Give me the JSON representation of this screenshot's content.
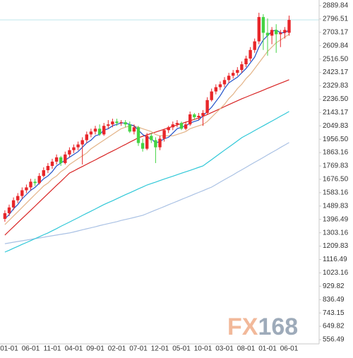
{
  "chart_data": {
    "type": "candlestick",
    "categories": [
      null,
      "01-01",
      null,
      null,
      null,
      null,
      "06-01",
      null,
      null,
      null,
      null,
      "11-01",
      null,
      null,
      null,
      null,
      "04-01",
      null,
      null,
      null,
      null,
      "09-01",
      null,
      null,
      null,
      null,
      "02-01",
      null,
      null,
      null,
      null,
      "07-01",
      null,
      null,
      null,
      null,
      "12-01",
      null,
      null,
      null,
      null,
      "05-01",
      null,
      null,
      null,
      null,
      "10-01",
      null,
      null,
      null,
      null,
      "03-01",
      null,
      null,
      null,
      null,
      "08-01",
      null,
      null,
      null,
      null,
      "01-01",
      null,
      null,
      null,
      null,
      "06-01"
    ],
    "open": [
      1400,
      1440,
      1480,
      1530,
      1560,
      1600,
      1620,
      1660,
      1650,
      1700,
      1740,
      1770,
      1800,
      1830,
      1790,
      1850,
      1880,
      1900,
      1920,
      1950,
      1990,
      2010,
      2030,
      1990,
      2050,
      2060,
      2080,
      2070,
      2075,
      2060,
      2010,
      2040,
      1930,
      1890,
      1980,
      1950,
      1900,
      1960,
      2020,
      2040,
      2060,
      2070,
      2030,
      2060,
      2130,
      2110,
      2120,
      2140,
      2230,
      2290,
      2320,
      2340,
      2370,
      2400,
      2420,
      2440,
      2480,
      2520,
      2580,
      2640,
      2810,
      2700,
      2680,
      2720,
      2690,
      2700,
      2700
    ],
    "high": [
      1460,
      1500,
      1550,
      1580,
      1620,
      1640,
      1680,
      1680,
      1720,
      1760,
      1790,
      1820,
      1850,
      1840,
      1870,
      1900,
      1920,
      1940,
      1970,
      2010,
      2030,
      2050,
      2060,
      2070,
      2090,
      2100,
      2100,
      2090,
      2090,
      2080,
      2060,
      2050,
      1960,
      2000,
      2000,
      1970,
      1980,
      2030,
      2050,
      2080,
      2090,
      2080,
      2080,
      2150,
      2140,
      2140,
      2160,
      2250,
      2310,
      2340,
      2360,
      2390,
      2420,
      2440,
      2460,
      2500,
      2540,
      2600,
      2660,
      2840,
      2830,
      2800,
      2740,
      2760,
      2720,
      2740,
      2820
    ],
    "low": [
      1380,
      1420,
      1460,
      1510,
      1540,
      1580,
      1600,
      1630,
      1640,
      1690,
      1720,
      1750,
      1780,
      1770,
      1780,
      1830,
      1860,
      1880,
      1780,
      1930,
      1970,
      1990,
      1980,
      1980,
      2030,
      2040,
      2050,
      2050,
      2040,
      2000,
      1990,
      1910,
      1870,
      1880,
      1930,
      1790,
      1880,
      1940,
      2000,
      2020,
      2040,
      2020,
      2020,
      2050,
      2090,
      2090,
      2050,
      2130,
      2220,
      2270,
      2300,
      2320,
      2350,
      2380,
      2400,
      2420,
      2460,
      2500,
      2560,
      2620,
      2580,
      2540,
      2620,
      2560,
      2600,
      2660,
      2680
    ],
    "close": [
      1440,
      1480,
      1530,
      1560,
      1600,
      1620,
      1660,
      1650,
      1700,
      1740,
      1770,
      1800,
      1830,
      1790,
      1850,
      1880,
      1900,
      1920,
      1950,
      1990,
      2010,
      2030,
      1990,
      2050,
      2060,
      2080,
      2070,
      2075,
      2060,
      2010,
      2040,
      1930,
      1890,
      1980,
      1950,
      1900,
      1960,
      2020,
      2040,
      2060,
      2070,
      2030,
      2060,
      2130,
      2110,
      2120,
      2140,
      2230,
      2290,
      2320,
      2340,
      2370,
      2400,
      2420,
      2440,
      2480,
      2520,
      2580,
      2640,
      2810,
      2700,
      2680,
      2720,
      2690,
      2700,
      2720,
      2790
    ],
    "up_color": "#e8262a",
    "down_color": "#44d444",
    "lines": [
      {
        "color": "#a9c1e4",
        "values": [
          1227,
          1232,
          1237,
          1242,
          1247,
          1252,
          1257,
          1262,
          1267,
          1272,
          1277,
          1282,
          1287,
          1292,
          1297,
          1302,
          1309,
          1316,
          1324,
          1331,
          1338,
          1345,
          1353,
          1360,
          1367,
          1374,
          1381,
          1389,
          1396,
          1403,
          1410,
          1418,
          1425,
          1437,
          1450,
          1462,
          1474,
          1486,
          1499,
          1511,
          1523,
          1536,
          1548,
          1560,
          1573,
          1585,
          1597,
          1610,
          1622,
          1639,
          1657,
          1674,
          1691,
          1708,
          1726,
          1743,
          1760,
          1778,
          1795,
          1812,
          1829,
          1847,
          1864,
          1881,
          1899,
          1916,
          1933
        ]
      },
      {
        "color": "#30c8d8",
        "values": [
          1168,
          1181,
          1195,
          1208,
          1222,
          1235,
          1248,
          1262,
          1275,
          1289,
          1302,
          1317,
          1332,
          1348,
          1363,
          1378,
          1393,
          1408,
          1424,
          1439,
          1454,
          1469,
          1485,
          1500,
          1514,
          1527,
          1541,
          1555,
          1569,
          1582,
          1596,
          1610,
          1623,
          1637,
          1647,
          1657,
          1668,
          1678,
          1688,
          1698,
          1709,
          1719,
          1729,
          1739,
          1749,
          1760,
          1770,
          1792,
          1814,
          1836,
          1858,
          1880,
          1901,
          1923,
          1945,
          1967,
          1984,
          2000,
          2017,
          2034,
          2050,
          2067,
          2083,
          2100,
          2117,
          2133,
          2150
        ]
      },
      {
        "color": "#d82424",
        "values": [
          1287,
          1316,
          1345,
          1374,
          1403,
          1431,
          1460,
          1489,
          1518,
          1547,
          1576,
          1605,
          1634,
          1662,
          1691,
          1720,
          1735,
          1751,
          1766,
          1782,
          1797,
          1812,
          1828,
          1843,
          1859,
          1874,
          1889,
          1905,
          1920,
          1936,
          1951,
          1967,
          1977,
          1987,
          1997,
          2006,
          2016,
          2026,
          2036,
          2046,
          2056,
          2066,
          2075,
          2085,
          2095,
          2105,
          2115,
          2129,
          2143,
          2156,
          2170,
          2184,
          2198,
          2212,
          2225,
          2239,
          2251,
          2263,
          2275,
          2287,
          2299,
          2312,
          2324,
          2336,
          2348,
          2360,
          2372
        ]
      },
      {
        "color": "#e3b387",
        "values": [
          1360,
          1390,
          1420,
          1450,
          1480,
          1510,
          1540,
          1570,
          1600,
          1630,
          1650,
          1680,
          1700,
          1730,
          1750,
          1780,
          1800,
          1820,
          1840,
          1860,
          1890,
          1910,
          1930,
          1950,
          1970,
          1990,
          2010,
          2030,
          2040,
          2050,
          2050,
          2040,
          2030,
          2020,
          2010,
          1990,
          1980,
          1980,
          1980,
          1980,
          1990,
          2000,
          2010,
          2030,
          2040,
          2050,
          2060,
          2080,
          2110,
          2140,
          2170,
          2200,
          2240,
          2270,
          2310,
          2340,
          2380,
          2410,
          2450,
          2490,
          2530,
          2570,
          2600,
          2630,
          2650,
          2670,
          2690
        ]
      },
      {
        "color": "#2050c8",
        "values": [
          1400,
          1430,
          1470,
          1500,
          1540,
          1570,
          1600,
          1620,
          1650,
          1680,
          1700,
          1730,
          1770,
          1790,
          1810,
          1830,
          1850,
          1870,
          1900,
          1930,
          1950,
          1980,
          1990,
          2020,
          2030,
          2050,
          2060,
          2070,
          2070,
          2060,
          2050,
          2020,
          1990,
          1970,
          1960,
          1930,
          1940,
          1960,
          1970,
          2000,
          2030,
          2040,
          2050,
          2070,
          2080,
          2090,
          2120,
          2150,
          2180,
          2220,
          2260,
          2310,
          2350,
          2370,
          2390,
          2420,
          2450,
          2490,
          2530,
          2600,
          2650,
          2680,
          2710,
          2720,
          2700,
          2700,
          2720
        ]
      }
    ],
    "last_line_color": "#bfe8ec",
    "ylim": [
      527,
      2929
    ],
    "yticks": [
      2889.84,
      2796.51,
      2703.17,
      2609.84,
      {
        "value": 2516.5,
        "label": "2516.50"
      },
      2423.17,
      2329.83,
      {
        "value": 2236.5,
        "label": "2236.50"
      },
      2143.17,
      2049.83,
      {
        "value": 1956.5,
        "label": "1956.50"
      },
      1863.16,
      1769.83,
      {
        "value": 1676.5,
        "label": "1676.50"
      },
      1583.16,
      1489.83,
      1396.49,
      1303.16,
      1209.83,
      1116.49,
      1023.16,
      929.82,
      836.49,
      743.15,
      649.82,
      556.49
    ],
    "watermark": {
      "left": "FX",
      "right": "168"
    }
  }
}
